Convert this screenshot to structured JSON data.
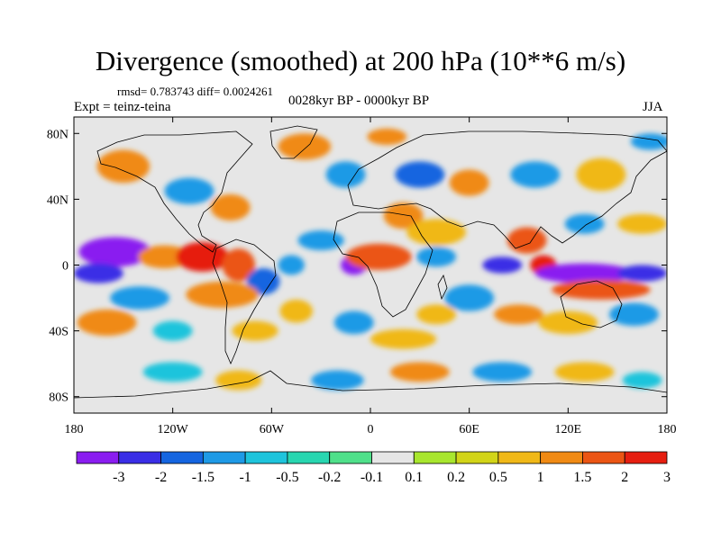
{
  "chart_data": {
    "type": "heatmap",
    "title": "Divergence (smoothed) at 200 hPa (10**6 m/s)",
    "stats": "rmsd= 0.783743 diff= 0.0024261",
    "experiment": "Expt = teinz-teina",
    "period": "0028kyr BP - 0000kyr BP",
    "season": "JJA",
    "xrange": [
      -180,
      180
    ],
    "yrange": [
      -90,
      90
    ],
    "x_ticks": [
      {
        "value": -180,
        "label": "180"
      },
      {
        "value": -120,
        "label": "120W"
      },
      {
        "value": -60,
        "label": "60W"
      },
      {
        "value": 0,
        "label": "0"
      },
      {
        "value": 60,
        "label": "60E"
      },
      {
        "value": 120,
        "label": "120E"
      },
      {
        "value": 180,
        "label": "180"
      }
    ],
    "y_ticks": [
      {
        "value": 80,
        "label": "80N"
      },
      {
        "value": 40,
        "label": "40N"
      },
      {
        "value": 0,
        "label": "0"
      },
      {
        "value": -40,
        "label": "40S"
      },
      {
        "value": -80,
        "label": "80S"
      }
    ],
    "colorbar": {
      "labels": [
        "-3",
        "-2",
        "-1.5",
        "-1",
        "-0.5",
        "-0.2",
        "-0.1",
        "0.1",
        "0.2",
        "0.5",
        "1",
        "1.5",
        "2",
        "3"
      ],
      "colors": [
        "#8a1df0",
        "#3a2ee6",
        "#1565e0",
        "#1e9ae6",
        "#1ec4dc",
        "#28d6b0",
        "#4fe08a",
        "#e6e6e6",
        "#a8e62e",
        "#d2d418",
        "#f0b818",
        "#f08a14",
        "#eb5514",
        "#e61e10"
      ]
    },
    "blobs": [
      {
        "lon": -155,
        "lat": 8,
        "rlon": 22,
        "rlat": 9,
        "value": -3
      },
      {
        "lon": -165,
        "lat": -5,
        "rlon": 15,
        "rlat": 6,
        "value": -2
      },
      {
        "lon": -125,
        "lat": 5,
        "rlon": 16,
        "rlat": 7,
        "value": 1.5
      },
      {
        "lon": -102,
        "lat": 5,
        "rlon": 16,
        "rlat": 9,
        "value": 3
      },
      {
        "lon": -80,
        "lat": 0,
        "rlon": 10,
        "rlat": 10,
        "value": 2
      },
      {
        "lon": -65,
        "lat": -10,
        "rlon": 10,
        "rlat": 8,
        "value": -1.5
      },
      {
        "lon": -90,
        "lat": -18,
        "rlon": 22,
        "rlat": 8,
        "value": 1.5
      },
      {
        "lon": -140,
        "lat": -20,
        "rlon": 18,
        "rlat": 7,
        "value": -1
      },
      {
        "lon": -160,
        "lat": -35,
        "rlon": 18,
        "rlat": 8,
        "value": 1.5
      },
      {
        "lon": -120,
        "lat": -40,
        "rlon": 12,
        "rlat": 6,
        "value": -0.5
      },
      {
        "lon": -70,
        "lat": -40,
        "rlon": 14,
        "rlat": 6,
        "value": 1
      },
      {
        "lon": -45,
        "lat": -28,
        "rlon": 10,
        "rlat": 7,
        "value": 1
      },
      {
        "lon": -48,
        "lat": 0,
        "rlon": 8,
        "rlat": 6,
        "value": -1
      },
      {
        "lon": -30,
        "lat": 15,
        "rlon": 14,
        "rlat": 6,
        "value": -1
      },
      {
        "lon": -10,
        "lat": 0,
        "rlon": 8,
        "rlat": 6,
        "value": -3
      },
      {
        "lon": 5,
        "lat": 5,
        "rlon": 20,
        "rlat": 8,
        "value": 2
      },
      {
        "lon": 20,
        "lat": 30,
        "rlon": 12,
        "rlat": 8,
        "value": 1.5
      },
      {
        "lon": 40,
        "lat": 5,
        "rlon": 12,
        "rlat": 6,
        "value": -1
      },
      {
        "lon": 40,
        "lat": 20,
        "rlon": 18,
        "rlat": 8,
        "value": 1
      },
      {
        "lon": 80,
        "lat": 0,
        "rlon": 12,
        "rlat": 5,
        "value": -2
      },
      {
        "lon": 95,
        "lat": 15,
        "rlon": 12,
        "rlat": 8,
        "value": 2
      },
      {
        "lon": 105,
        "lat": 0,
        "rlon": 8,
        "rlat": 6,
        "value": 3
      },
      {
        "lon": 130,
        "lat": -5,
        "rlon": 30,
        "rlat": 6,
        "value": -3
      },
      {
        "lon": 165,
        "lat": -5,
        "rlon": 15,
        "rlat": 5,
        "value": -2
      },
      {
        "lon": 140,
        "lat": -15,
        "rlon": 30,
        "rlat": 6,
        "value": 2
      },
      {
        "lon": 130,
        "lat": 25,
        "rlon": 12,
        "rlat": 6,
        "value": -1
      },
      {
        "lon": 165,
        "lat": 25,
        "rlon": 15,
        "rlat": 6,
        "value": 1
      },
      {
        "lon": 60,
        "lat": -20,
        "rlon": 15,
        "rlat": 8,
        "value": -1
      },
      {
        "lon": 40,
        "lat": -30,
        "rlon": 12,
        "rlat": 6,
        "value": 1
      },
      {
        "lon": 90,
        "lat": -30,
        "rlon": 15,
        "rlat": 6,
        "value": 1.5
      },
      {
        "lon": 120,
        "lat": -35,
        "rlon": 18,
        "rlat": 7,
        "value": 1
      },
      {
        "lon": 160,
        "lat": -30,
        "rlon": 15,
        "rlat": 7,
        "value": -1
      },
      {
        "lon": 20,
        "lat": -45,
        "rlon": 20,
        "rlat": 6,
        "value": 1
      },
      {
        "lon": -10,
        "lat": -35,
        "rlon": 12,
        "rlat": 7,
        "value": -1
      },
      {
        "lon": -120,
        "lat": -65,
        "rlon": 18,
        "rlat": 6,
        "value": -0.5
      },
      {
        "lon": -80,
        "lat": -70,
        "rlon": 14,
        "rlat": 6,
        "value": 1
      },
      {
        "lon": -20,
        "lat": -70,
        "rlon": 16,
        "rlat": 6,
        "value": -1
      },
      {
        "lon": 30,
        "lat": -65,
        "rlon": 18,
        "rlat": 6,
        "value": 1.5
      },
      {
        "lon": 80,
        "lat": -65,
        "rlon": 18,
        "rlat": 6,
        "value": -1
      },
      {
        "lon": 130,
        "lat": -65,
        "rlon": 18,
        "rlat": 6,
        "value": 1
      },
      {
        "lon": 165,
        "lat": -70,
        "rlon": 12,
        "rlat": 5,
        "value": -0.5
      },
      {
        "lon": -150,
        "lat": 60,
        "rlon": 16,
        "rlat": 10,
        "value": 1.5
      },
      {
        "lon": -110,
        "lat": 45,
        "rlon": 15,
        "rlat": 8,
        "value": -1
      },
      {
        "lon": -85,
        "lat": 35,
        "rlon": 12,
        "rlat": 8,
        "value": 1.5
      },
      {
        "lon": -40,
        "lat": 72,
        "rlon": 16,
        "rlat": 8,
        "value": 1.5
      },
      {
        "lon": -15,
        "lat": 55,
        "rlon": 12,
        "rlat": 8,
        "value": -1
      },
      {
        "lon": 10,
        "lat": 78,
        "rlon": 12,
        "rlat": 5,
        "value": 1.5
      },
      {
        "lon": 30,
        "lat": 55,
        "rlon": 15,
        "rlat": 8,
        "value": -1.5
      },
      {
        "lon": 60,
        "lat": 50,
        "rlon": 12,
        "rlat": 8,
        "value": 1.5
      },
      {
        "lon": 100,
        "lat": 55,
        "rlon": 15,
        "rlat": 8,
        "value": -1
      },
      {
        "lon": 140,
        "lat": 55,
        "rlon": 15,
        "rlat": 10,
        "value": 1
      },
      {
        "lon": 170,
        "lat": 75,
        "rlon": 12,
        "rlat": 5,
        "value": -1
      }
    ]
  }
}
